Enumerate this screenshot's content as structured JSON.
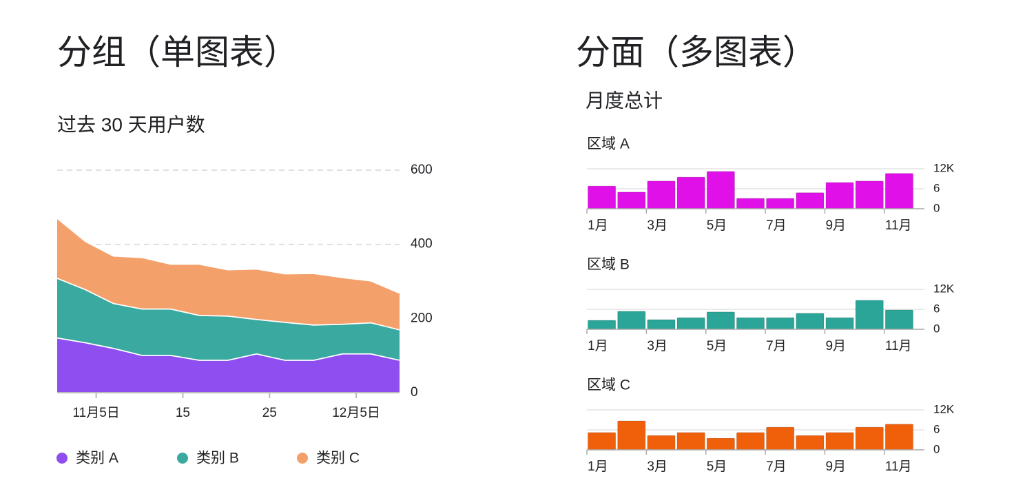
{
  "headings": [
    "分组（单图表）",
    "分面（多图表）"
  ],
  "panel_title": "月度总计",
  "chart_data": [
    {
      "type": "area",
      "title": "过去 30 天用户数",
      "stacked": true,
      "x": [
        0.5,
        3.8,
        7,
        10.3,
        13.6,
        16.9,
        20.2,
        23.5,
        26.8,
        30.1,
        33.4,
        36.7,
        40
      ],
      "xlim": [
        0.5,
        40
      ],
      "xticks": [
        {
          "value": 5,
          "label": "11月5日"
        },
        15,
        25,
        {
          "value": 35,
          "label": "12月5日"
        }
      ],
      "ylim": [
        0,
        600
      ],
      "yticks": [
        0,
        200,
        400,
        600
      ],
      "grid": true,
      "legend": "bottom",
      "series": [
        {
          "name": "类别 A",
          "color": "#8f4ff0",
          "values": [
            149,
            136,
            121,
            102,
            102,
            89,
            89,
            106,
            89,
            89,
            106,
            106,
            89
          ]
        },
        {
          "name": "类别 B",
          "color": "#3aa9a0",
          "values": [
            161,
            143,
            121,
            125,
            125,
            121,
            119,
            93,
            102,
            95,
            80,
            84,
            82
          ]
        },
        {
          "name": "类别 C",
          "color": "#f4a06a",
          "values": [
            162,
            130,
            128,
            139,
            121,
            138,
            125,
            136,
            131,
            139,
            126,
            113,
            99
          ]
        }
      ]
    },
    {
      "type": "bar",
      "title": "区域 A",
      "color": "#e010e8",
      "categories": [
        "1月",
        null,
        "3月",
        null,
        "5月",
        null,
        "7月",
        null,
        "9月",
        null,
        "11月"
      ],
      "values": [
        6.8,
        5.0,
        8.3,
        9.5,
        11.2,
        3.1,
        3.1,
        4.8,
        7.9,
        8.3,
        10.6
      ],
      "ylim": [
        0,
        12
      ],
      "yticks": [
        0,
        6,
        {
          "value": 12,
          "label": "12K"
        }
      ],
      "grid": true
    },
    {
      "type": "bar",
      "title": "区域 B",
      "color": "#2aa597",
      "categories": [
        "1月",
        null,
        "3月",
        null,
        "5月",
        null,
        "7月",
        null,
        "9月",
        null,
        "11月"
      ],
      "values": [
        2.7,
        5.4,
        2.9,
        3.5,
        5.2,
        3.5,
        3.5,
        4.8,
        3.5,
        8.7,
        5.8
      ],
      "ylim": [
        0,
        12
      ],
      "yticks": [
        0,
        6,
        {
          "value": 12,
          "label": "12K"
        }
      ],
      "grid": true
    },
    {
      "type": "bar",
      "title": "区域 C",
      "color": "#f0600a",
      "categories": [
        "1月",
        null,
        "3月",
        null,
        "5月",
        null,
        "7月",
        null,
        "9月",
        null,
        "11月"
      ],
      "values": [
        5.2,
        8.7,
        4.3,
        5.2,
        3.5,
        5.2,
        6.8,
        4.3,
        5.2,
        6.8,
        7.7
      ],
      "ylim": [
        0,
        12
      ],
      "yticks": [
        0,
        6,
        {
          "value": 12,
          "label": "12K"
        }
      ],
      "grid": true
    }
  ]
}
